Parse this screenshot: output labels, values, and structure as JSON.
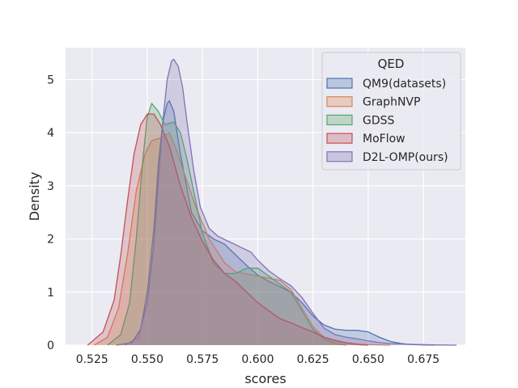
{
  "chart_data": {
    "type": "area",
    "xlabel": "scores",
    "ylabel": "Density",
    "xlim": [
      0.513,
      0.694
    ],
    "ylim": [
      0,
      5.6
    ],
    "xticks": [
      "0.525",
      "0.550",
      "0.575",
      "0.600",
      "0.625",
      "0.650",
      "0.675"
    ],
    "xtick_values": [
      0.525,
      0.55,
      0.575,
      0.6,
      0.625,
      0.65,
      0.675
    ],
    "yticks": [
      "0",
      "1",
      "2",
      "3",
      "4",
      "5"
    ],
    "ytick_values": [
      0,
      1,
      2,
      3,
      4,
      5
    ],
    "grid": true,
    "legend": {
      "title": "QED",
      "placement": "upper-right",
      "entries": [
        "QM9(datasets)",
        "GraphNVP",
        "GDSS",
        "MoFlow",
        "D2L-OMP(ours)"
      ]
    },
    "series": [
      {
        "name": "QM9(datasets)",
        "color": "#4c72b0",
        "x": [
          0.536,
          0.543,
          0.547,
          0.55,
          0.553,
          0.555,
          0.557,
          0.559,
          0.56,
          0.562,
          0.565,
          0.57,
          0.575,
          0.58,
          0.585,
          0.59,
          0.595,
          0.6,
          0.605,
          0.61,
          0.615,
          0.62,
          0.625,
          0.63,
          0.635,
          0.64,
          0.645,
          0.65,
          0.655,
          0.66,
          0.665,
          0.67,
          0.675,
          0.68
        ],
        "y": [
          0,
          0.05,
          0.3,
          1.0,
          2.2,
          3.4,
          4.2,
          4.55,
          4.6,
          4.4,
          3.6,
          2.5,
          2.15,
          2.0,
          1.9,
          1.7,
          1.5,
          1.32,
          1.2,
          1.1,
          1.0,
          0.8,
          0.55,
          0.38,
          0.3,
          0.28,
          0.28,
          0.25,
          0.15,
          0.07,
          0.03,
          0.01,
          0.005,
          0
        ]
      },
      {
        "name": "GraphNVP",
        "color": "#dd8452",
        "x": [
          0.526,
          0.532,
          0.537,
          0.541,
          0.545,
          0.549,
          0.552,
          0.556,
          0.56,
          0.563,
          0.567,
          0.572,
          0.578,
          0.585,
          0.59,
          0.6,
          0.61,
          0.615,
          0.62,
          0.625,
          0.63,
          0.64,
          0.65,
          0.66
        ],
        "y": [
          0,
          0.15,
          0.7,
          1.7,
          2.9,
          3.6,
          3.85,
          3.9,
          4.0,
          3.7,
          3.2,
          2.6,
          2.0,
          1.55,
          1.38,
          1.3,
          1.22,
          1.05,
          0.7,
          0.35,
          0.15,
          0.05,
          0.01,
          0
        ]
      },
      {
        "name": "GDSS",
        "color": "#55a868",
        "x": [
          0.532,
          0.538,
          0.542,
          0.545,
          0.548,
          0.55,
          0.552,
          0.555,
          0.558,
          0.562,
          0.565,
          0.568,
          0.571,
          0.575,
          0.58,
          0.585,
          0.59,
          0.595,
          0.6,
          0.605,
          0.61,
          0.615,
          0.62,
          0.625,
          0.63,
          0.635,
          0.64
        ],
        "y": [
          0,
          0.2,
          0.8,
          2.0,
          3.5,
          4.3,
          4.55,
          4.4,
          4.15,
          4.2,
          4.0,
          3.5,
          2.9,
          2.1,
          1.55,
          1.35,
          1.35,
          1.45,
          1.45,
          1.3,
          1.15,
          1.0,
          0.65,
          0.3,
          0.12,
          0.03,
          0
        ]
      },
      {
        "name": "MoFlow",
        "color": "#c44e52",
        "x": [
          0.523,
          0.53,
          0.535,
          0.538,
          0.541,
          0.544,
          0.547,
          0.55,
          0.553,
          0.556,
          0.56,
          0.565,
          0.57,
          0.575,
          0.58,
          0.585,
          0.59,
          0.595,
          0.6,
          0.605,
          0.61,
          0.615,
          0.62,
          0.625,
          0.63,
          0.635,
          0.64,
          0.645,
          0.65
        ],
        "y": [
          0,
          0.25,
          0.85,
          1.7,
          2.7,
          3.6,
          4.15,
          4.35,
          4.35,
          4.15,
          3.75,
          3.0,
          2.4,
          1.95,
          1.6,
          1.35,
          1.2,
          1.0,
          0.8,
          0.65,
          0.5,
          0.42,
          0.33,
          0.25,
          0.15,
          0.08,
          0.04,
          0.01,
          0
        ]
      },
      {
        "name": "D2L-OMP(ours)",
        "color": "#8172b3",
        "x": [
          0.54,
          0.546,
          0.55,
          0.553,
          0.555,
          0.557,
          0.559,
          0.561,
          0.562,
          0.564,
          0.566,
          0.568,
          0.571,
          0.574,
          0.578,
          0.582,
          0.587,
          0.592,
          0.597,
          0.6,
          0.605,
          0.61,
          0.615,
          0.62,
          0.625,
          0.63,
          0.635,
          0.64,
          0.645,
          0.65,
          0.655,
          0.66,
          0.67,
          0.68,
          0.69
        ],
        "y": [
          0,
          0.15,
          0.8,
          1.9,
          3.1,
          4.2,
          5.0,
          5.35,
          5.38,
          5.25,
          4.85,
          4.2,
          3.3,
          2.6,
          2.2,
          2.05,
          1.95,
          1.85,
          1.75,
          1.6,
          1.4,
          1.25,
          1.12,
          0.9,
          0.6,
          0.32,
          0.2,
          0.15,
          0.12,
          0.08,
          0.05,
          0.03,
          0.015,
          0.005,
          0
        ]
      }
    ]
  }
}
